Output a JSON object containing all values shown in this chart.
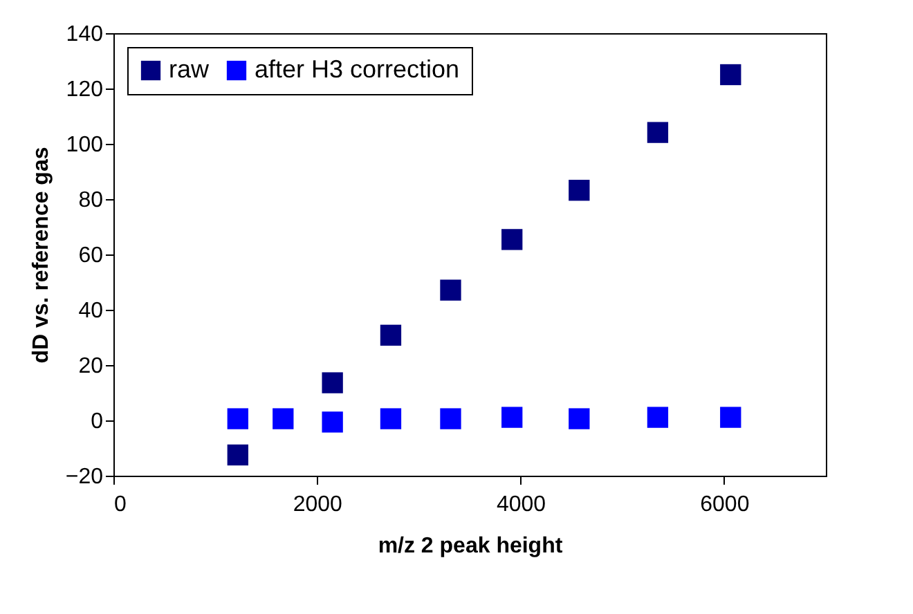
{
  "chart_data": {
    "type": "scatter",
    "xlabel": "m/z 2 peak height",
    "ylabel": "dD vs. reference gas",
    "x": [
      1222,
      1667,
      2152,
      2725,
      3313,
      3916,
      4576,
      5348,
      6064
    ],
    "series": [
      {
        "name": "raw",
        "color": "#000080",
        "values": [
          -12.5,
          null,
          13.6,
          30.8,
          47.1,
          65.4,
          83.2,
          104.1,
          125.0
        ]
      },
      {
        "name": "after H3 correction",
        "color": "#0000ff",
        "values": [
          0.6,
          0.6,
          -0.6,
          0.6,
          0.6,
          1.1,
          0.6,
          1.1,
          1.1
        ]
      }
    ],
    "xlim": [
      0,
      7000
    ],
    "xticks": [
      0,
      2000,
      4000,
      6000
    ],
    "ylim": [
      -20,
      140
    ],
    "yticks": [
      -20,
      0,
      20,
      40,
      60,
      80,
      100,
      120,
      140
    ],
    "grid": false,
    "legend": "top left",
    "marker": "square"
  }
}
